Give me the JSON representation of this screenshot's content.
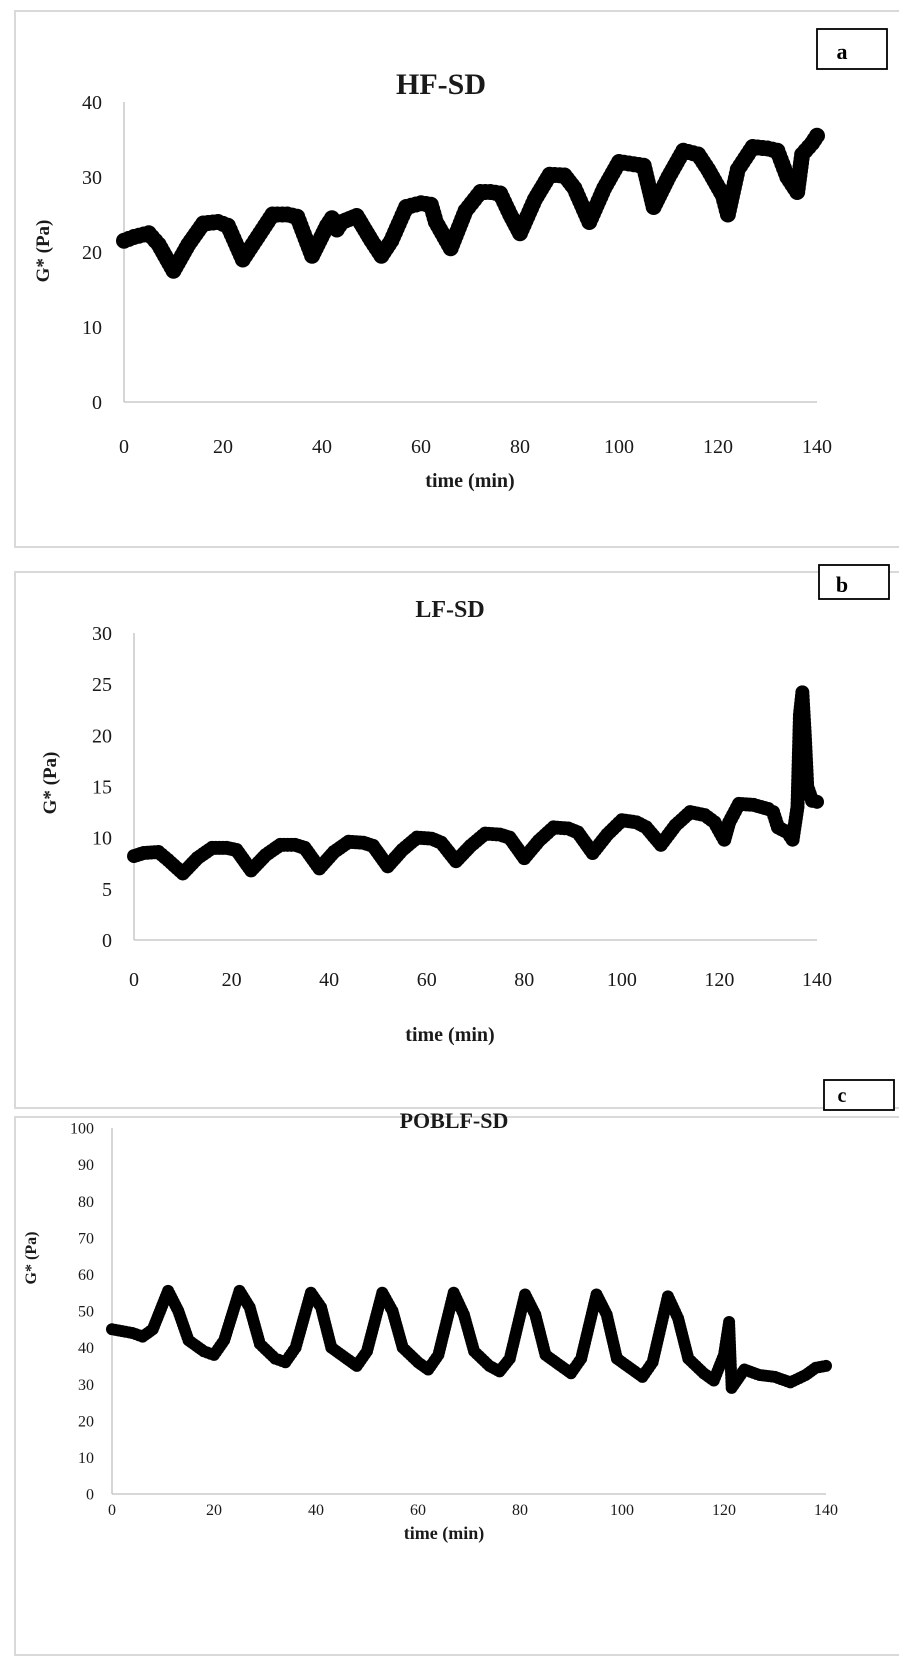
{
  "chart_data": [
    {
      "type": "scatter",
      "panel_label": "a",
      "title": "HF-SD",
      "xlabel": "time (min)",
      "ylabel": "G* (Pa)",
      "xlim": [
        0,
        140
      ],
      "ylim": [
        0,
        40
      ],
      "x_ticks": [
        "0",
        "20",
        "40",
        "60",
        "80",
        "100",
        "120",
        "140"
      ],
      "y_ticks": [
        "0",
        "10",
        "20",
        "30",
        "40"
      ],
      "grid": false,
      "legend": "none",
      "series": [
        {
          "x": [
            0,
            2,
            5,
            7,
            10,
            13,
            16,
            19,
            21,
            24,
            27,
            30,
            33,
            35,
            38,
            41,
            42,
            43,
            44,
            47,
            50,
            52,
            54,
            57,
            60,
            62,
            63,
            66,
            69,
            72,
            74,
            76,
            78,
            80,
            83,
            86,
            89,
            91,
            94,
            97,
            100,
            103,
            105,
            107,
            110,
            113,
            116,
            118,
            121,
            122,
            124,
            127,
            130,
            132,
            134,
            136,
            137,
            139,
            140
          ],
          "y": [
            21.5,
            22,
            22.5,
            21,
            17.5,
            21,
            23.8,
            24,
            23.5,
            19,
            22,
            25,
            25,
            24.7,
            19.5,
            23.5,
            24.5,
            23,
            24,
            24.8,
            21.5,
            19.5,
            21.5,
            26,
            26.5,
            26.3,
            24,
            20.5,
            25.5,
            28,
            28,
            27.8,
            25,
            22.5,
            27,
            30.3,
            30.2,
            28.5,
            24,
            28.5,
            32,
            31.7,
            31.5,
            26,
            30,
            33.5,
            33,
            31,
            27.5,
            25,
            31,
            34,
            33.8,
            33.5,
            30,
            28,
            33,
            34.5,
            35.5
          ]
        }
      ]
    },
    {
      "type": "scatter",
      "panel_label": "b",
      "title": "LF-SD",
      "xlabel": "time (min)",
      "ylabel": "G* (Pa)",
      "xlim": [
        0,
        140
      ],
      "ylim": [
        0,
        30
      ],
      "x_ticks": [
        "0",
        "20",
        "40",
        "60",
        "80",
        "100",
        "120",
        "140"
      ],
      "y_ticks": [
        "0",
        "5",
        "10",
        "15",
        "20",
        "25",
        "30"
      ],
      "grid": false,
      "legend": "none",
      "series": [
        {
          "x": [
            0,
            2,
            5,
            7,
            10,
            13,
            16,
            19,
            21,
            24,
            27,
            30,
            33,
            35,
            38,
            41,
            44,
            47,
            49,
            52,
            55,
            58,
            61,
            63,
            66,
            69,
            72,
            75,
            77,
            80,
            83,
            86,
            89,
            91,
            94,
            97,
            100,
            103,
            105,
            108,
            111,
            114,
            117,
            119,
            121,
            122,
            124,
            127,
            130,
            131,
            132,
            134,
            135,
            136,
            136.5,
            137,
            137.5,
            138,
            139,
            140
          ],
          "y": [
            8.2,
            8.5,
            8.6,
            7.8,
            6.5,
            8,
            9,
            9,
            8.8,
            6.8,
            8.3,
            9.3,
            9.3,
            9,
            7,
            8.6,
            9.6,
            9.5,
            9.2,
            7.2,
            8.8,
            10,
            9.9,
            9.5,
            7.7,
            9.2,
            10.4,
            10.3,
            10,
            8,
            9.7,
            11,
            10.9,
            10.5,
            8.5,
            10.3,
            11.7,
            11.5,
            11,
            9.3,
            11.2,
            12.5,
            12.2,
            11.5,
            9.8,
            11.5,
            13.3,
            13.2,
            12.8,
            12.5,
            11,
            10.5,
            9.8,
            13,
            22,
            24.2,
            20,
            15,
            13.6,
            13.5
          ]
        }
      ]
    },
    {
      "type": "scatter",
      "panel_label": "c",
      "title": "POBLF-SD",
      "xlabel": "time (min)",
      "ylabel": "G* (Pa)",
      "xlim": [
        0,
        140
      ],
      "ylim": [
        0,
        100
      ],
      "x_ticks": [
        "0",
        "20",
        "40",
        "60",
        "80",
        "100",
        "120",
        "140"
      ],
      "y_ticks": [
        "0",
        "10",
        "20",
        "30",
        "40",
        "50",
        "60",
        "70",
        "80",
        "90",
        "100"
      ],
      "grid": false,
      "legend": "none",
      "series": [
        {
          "x": [
            0,
            2,
            4,
            6,
            8,
            11,
            13,
            15,
            18,
            20,
            22,
            25,
            27,
            29,
            32,
            34,
            36,
            39,
            41,
            43,
            46,
            48,
            50,
            53,
            55,
            57,
            60,
            62,
            64,
            67,
            69,
            71,
            74,
            76,
            78,
            81,
            83,
            85,
            88,
            90,
            92,
            95,
            97,
            99,
            102,
            104,
            106,
            109,
            111,
            113,
            116,
            118,
            120,
            121,
            121.5,
            124,
            127,
            130,
            133,
            136,
            138,
            140
          ],
          "y": [
            45,
            44.5,
            44,
            43,
            45,
            55.5,
            50,
            42,
            39,
            38,
            42,
            55.5,
            51,
            41,
            37,
            36,
            40,
            55,
            51,
            40,
            37,
            35,
            39,
            55,
            50,
            40,
            36,
            34,
            38,
            55,
            49,
            39,
            35,
            33.5,
            37,
            54.5,
            49,
            38,
            35,
            33,
            37,
            54.5,
            49,
            37,
            34,
            32,
            36,
            54,
            48,
            37,
            33,
            31,
            38,
            47,
            29,
            34,
            32.5,
            32,
            30.5,
            32.5,
            34.5,
            35
          ]
        }
      ]
    }
  ]
}
